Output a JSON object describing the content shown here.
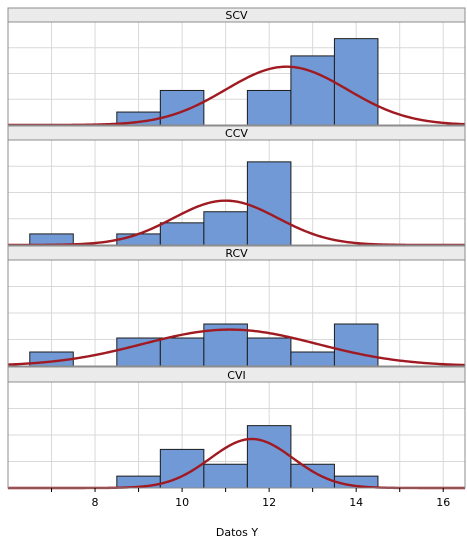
{
  "chart_data": {
    "type": "histogram",
    "xlabel": "Datos Y",
    "xlim": [
      6.0,
      16.5
    ],
    "x_ticks": [
      8,
      10,
      12,
      14,
      16
    ],
    "grid": true,
    "bin_width": 1,
    "colors": {
      "bar_fill": "#7199d5",
      "bar_edge": "#1c1c1c",
      "fit_curve": "#a01a22",
      "strip_fill": "#ebebeb",
      "grid": "#d9d9d9"
    },
    "panels": [
      {
        "name": "SCV",
        "ymax": 2.2,
        "bins": [
          {
            "start": 8.5,
            "count": 0.3
          },
          {
            "start": 9.5,
            "count": 0.8
          },
          {
            "start": 11.5,
            "count": 0.8
          },
          {
            "start": 12.5,
            "count": 1.6
          },
          {
            "start": 13.5,
            "count": 2.0
          }
        ],
        "fit": {
          "mean": 12.4,
          "sd": 1.4,
          "peak": 1.35
        }
      },
      {
        "name": "CCV",
        "ymax": 3.5,
        "bins": [
          {
            "start": 6.5,
            "count": 0.4
          },
          {
            "start": 8.5,
            "count": 0.4
          },
          {
            "start": 9.5,
            "count": 0.8
          },
          {
            "start": 10.5,
            "count": 1.2
          },
          {
            "start": 11.5,
            "count": 3.0
          }
        ],
        "fit": {
          "mean": 11.0,
          "sd": 1.2,
          "peak": 1.6
        }
      },
      {
        "name": "RCV",
        "ymax": 3.5,
        "bins": [
          {
            "start": 6.5,
            "count": 0.5
          },
          {
            "start": 8.5,
            "count": 1.0
          },
          {
            "start": 9.5,
            "count": 1.0
          },
          {
            "start": 10.5,
            "count": 1.5
          },
          {
            "start": 11.5,
            "count": 1.0
          },
          {
            "start": 12.5,
            "count": 0.5
          },
          {
            "start": 13.5,
            "count": 1.5
          }
        ],
        "fit": {
          "mean": 11.1,
          "sd": 2.0,
          "peak": 1.3
        }
      },
      {
        "name": "CVI",
        "ymax": 3.3,
        "bins": [
          {
            "start": 8.5,
            "count": 0.4
          },
          {
            "start": 9.5,
            "count": 1.3
          },
          {
            "start": 10.5,
            "count": 0.8
          },
          {
            "start": 11.5,
            "count": 2.1
          },
          {
            "start": 12.5,
            "count": 0.8
          },
          {
            "start": 13.5,
            "count": 0.4
          }
        ],
        "fit": {
          "mean": 11.6,
          "sd": 0.95,
          "peak": 1.65
        }
      }
    ]
  }
}
